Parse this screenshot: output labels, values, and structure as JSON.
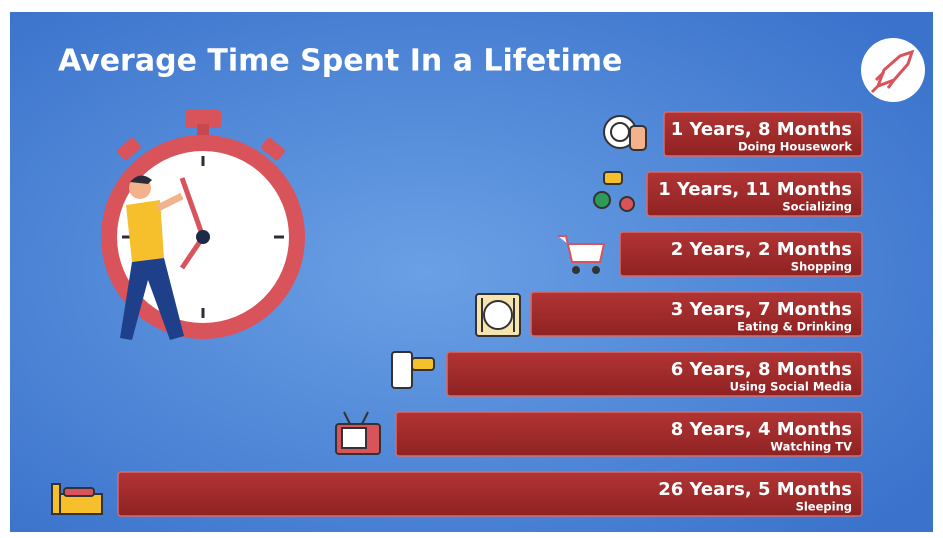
{
  "header": {
    "title": "Average Time Spent In a Lifetime"
  },
  "items": [
    {
      "duration": "1 Years, 8 Months",
      "activity": "Doing Housework"
    },
    {
      "duration": "1 Years, 11 Months",
      "activity": "Socializing"
    },
    {
      "duration": "2 Years, 2 Months",
      "activity": "Shopping"
    },
    {
      "duration": "3 Years, 7 Months",
      "activity": "Eating & Drinking"
    },
    {
      "duration": "6 Years, 8 Months",
      "activity": "Using Social Media"
    },
    {
      "duration": "8 Years, 4 Months",
      "activity": "Watching TV"
    },
    {
      "duration": "26 Years, 5 Months",
      "activity": "Sleeping"
    }
  ]
}
